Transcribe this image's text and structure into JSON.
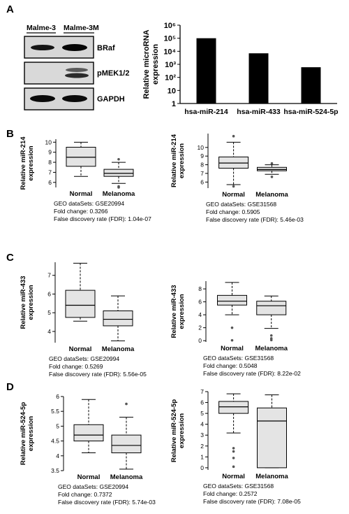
{
  "panel_labels": [
    "A",
    "B",
    "C",
    "D"
  ],
  "blot": {
    "lanes": [
      "Malme-3",
      "Malme-3M"
    ],
    "bands": [
      "BRaf",
      "pMEK1/2",
      "GAPDH"
    ]
  },
  "chart_data": [
    {
      "type": "bar",
      "panel": "A",
      "categories": [
        "hsa-miR-214",
        "hsa-miR-433",
        "hsa-miR-524-5p"
      ],
      "values": [
        100000,
        7000,
        600
      ],
      "ylabel": "Relative microRNA expression",
      "ylabel_lines": [
        "Relative microRNA",
        "expression"
      ],
      "yscale": "log",
      "ylim": [
        1,
        1000000
      ],
      "ytick_labels": [
        "1",
        "10",
        "10²",
        "10³",
        "10⁴",
        "10⁵",
        "10⁶"
      ],
      "bar_color": "#000000"
    },
    {
      "type": "box",
      "panel": "B-left",
      "categories": [
        "Normal",
        "Melanoma"
      ],
      "ylabel_lines": [
        "Relative miR-214",
        "expression"
      ],
      "ylim": [
        5.5,
        10.3
      ],
      "yticks": [
        6,
        7,
        8,
        9,
        10
      ],
      "boxes": [
        {
          "whislo": 6.6,
          "q1": 7.6,
          "med": 8.5,
          "q3": 9.5,
          "whishi": 10.0,
          "fliers": []
        },
        {
          "whislo": 5.9,
          "q1": 6.6,
          "med": 6.9,
          "q3": 7.3,
          "whishi": 8.0,
          "fliers": [
            8.3,
            5.6,
            5.5
          ]
        }
      ],
      "caption": [
        "GEO dataSets: GSE20994",
        "Fold change: 0.3266",
        "False discovery rate (FDR): 1.04e-07"
      ]
    },
    {
      "type": "box",
      "panel": "B-right",
      "categories": [
        "Normal",
        "Melanoma"
      ],
      "ylabel_lines": [
        "Relative miR-214",
        "expression"
      ],
      "ylim": [
        5.3,
        11.6
      ],
      "yticks": [
        6,
        7,
        8,
        9,
        10
      ],
      "boxes": [
        {
          "whislo": 5.7,
          "q1": 7.6,
          "med": 8.2,
          "q3": 8.9,
          "whishi": 10.6,
          "fliers": [
            11.3,
            5.5
          ]
        },
        {
          "whislo": 6.9,
          "q1": 7.3,
          "med": 7.45,
          "q3": 7.7,
          "whishi": 8.0,
          "fliers": [
            8.15,
            6.6
          ]
        }
      ],
      "caption": [
        "GEO dataSets: GSE31568",
        "Fold change: 0.5905",
        "False discovery rate (FDR): 5.46e-03"
      ]
    },
    {
      "type": "box",
      "panel": "C-left",
      "categories": [
        "Normal",
        "Melanoma"
      ],
      "ylabel_lines": [
        "Relative miR-433",
        "expression"
      ],
      "ylim": [
        3.4,
        7.7
      ],
      "yticks": [
        4,
        5,
        6,
        7
      ],
      "boxes": [
        {
          "whislo": 4.55,
          "q1": 4.75,
          "med": 5.4,
          "q3": 6.2,
          "whishi": 7.65,
          "fliers": []
        },
        {
          "whislo": 3.5,
          "q1": 4.3,
          "med": 4.65,
          "q3": 5.1,
          "whishi": 5.9,
          "fliers": []
        }
      ],
      "caption": [
        "GEO dataSets: GSE20994",
        "Fold change: 0.5269",
        "False discovery rate (FDR): 5.56e-05"
      ]
    },
    {
      "type": "box",
      "panel": "C-right",
      "categories": [
        "Normal",
        "Melanoma"
      ],
      "ylabel_lines": [
        "Relative miR-433",
        "expression"
      ],
      "ylim": [
        -0.2,
        9.2
      ],
      "yticks": [
        0,
        2,
        4,
        6,
        8
      ],
      "boxes": [
        {
          "whislo": 4.0,
          "q1": 5.5,
          "med": 6.1,
          "q3": 7.0,
          "whishi": 9.0,
          "fliers": [
            2.0,
            0.05
          ]
        },
        {
          "whislo": 1.9,
          "q1": 4.0,
          "med": 5.4,
          "q3": 6.1,
          "whishi": 6.9,
          "fliers": [
            0.8,
            0.35,
            0.1
          ]
        }
      ],
      "caption": [
        "GEO dataSets: GSE31568",
        "Fold change: 0.5048",
        "False discovery rate (FDR): 8.22e-02"
      ]
    },
    {
      "type": "box",
      "panel": "D-left",
      "categories": [
        "Normal",
        "Melanoma"
      ],
      "ylabel_lines": [
        "Relative miR-524-5p",
        "expression"
      ],
      "ylim": [
        3.5,
        6.0
      ],
      "yticks": [
        3.5,
        4.0,
        4.5,
        5.0,
        5.5,
        6.0
      ],
      "tick_format": "fixed1",
      "boxes": [
        {
          "whislo": 4.1,
          "q1": 4.5,
          "med": 4.7,
          "q3": 5.05,
          "whishi": 5.9,
          "fliers": []
        },
        {
          "whislo": 3.55,
          "q1": 4.1,
          "med": 4.35,
          "q3": 4.7,
          "whishi": 5.3,
          "fliers": [
            5.75
          ]
        }
      ],
      "caption": [
        "GEO dataSets: GSE20994",
        "Fold change: 0.7372",
        "False discovery rate (FDR): 5.74e-03"
      ]
    },
    {
      "type": "box",
      "panel": "D-right",
      "categories": [
        "Normal",
        "Melanoma"
      ],
      "ylabel_lines": [
        "Relative miR-524-5p",
        "expression"
      ],
      "ylim": [
        -0.2,
        7.0
      ],
      "yticks": [
        0,
        1,
        2,
        3,
        4,
        5,
        6,
        7
      ],
      "boxes": [
        {
          "whislo": 3.2,
          "q1": 5.0,
          "med": 5.6,
          "q3": 6.1,
          "whishi": 6.8,
          "fliers": [
            1.8,
            1.5,
            0.9,
            0.1
          ]
        },
        {
          "whislo": 0.0,
          "q1": 0.0,
          "med": 4.3,
          "q3": 5.5,
          "whishi": 6.7,
          "fliers": []
        }
      ],
      "caption": [
        "GEO dataSets: GSE31568",
        "Fold change: 0.2572",
        "False discovery rate (FDR): 7.08e-05"
      ]
    }
  ]
}
